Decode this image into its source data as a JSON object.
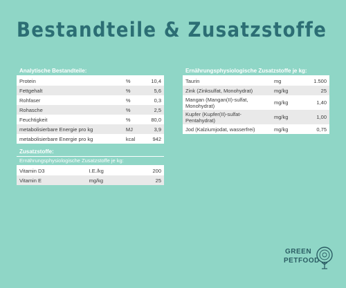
{
  "title": "Bestandteile & Zusatzstoffe",
  "analytics": {
    "header": "Analytische Bestandteile:",
    "rows": [
      {
        "name": "Protein",
        "unit": "%",
        "value": "10,4"
      },
      {
        "name": "Fettgehalt",
        "unit": "%",
        "value": "5,6"
      },
      {
        "name": "Rohfaser",
        "unit": "%",
        "value": "0,3"
      },
      {
        "name": "Rohasche",
        "unit": "%",
        "value": "2,5"
      },
      {
        "name": "Feuchtigkeit",
        "unit": "%",
        "value": "80,0"
      },
      {
        "name": "metabolisierbare Energie pro kg",
        "unit": "MJ",
        "value": "3,9"
      },
      {
        "name": "metabolisierbare Energie pro kg",
        "unit": "kcal",
        "value": "942"
      }
    ]
  },
  "additives": {
    "header": "Zusatzstoffe:",
    "subheader": "Ernährungsphysiologische Zusatzstoffe je kg:",
    "rows": [
      {
        "name": "Vitamin D3",
        "unit": "I.E./kg",
        "value": "200"
      },
      {
        "name": "Vitamin E",
        "unit": "mg/kg",
        "value": "25"
      }
    ]
  },
  "nutrition_additives": {
    "header": "Ernährungsphysiologische Zusatzstoffe je kg:",
    "rows": [
      {
        "name": "Taurin",
        "unit": "mg",
        "value": "1.500"
      },
      {
        "name": "Zink (Zinksulfat, Monohydrat)",
        "unit": "mg/kg",
        "value": "25"
      },
      {
        "name": "Mangan (Mangan(II)-sulfat, Monohydrat)",
        "unit": "mg/kg",
        "value": "1,40"
      },
      {
        "name": "Kupfer (Kupfer(II)-sulfat-Pentahydrat)",
        "unit": "mg/kg",
        "value": "1,00"
      },
      {
        "name": "Jod (Kalziumjodat, wasserfrei)",
        "unit": "mg/kg",
        "value": "0,75"
      }
    ]
  },
  "logo": {
    "line1": "GREEN",
    "line2": "PETFOOD"
  }
}
